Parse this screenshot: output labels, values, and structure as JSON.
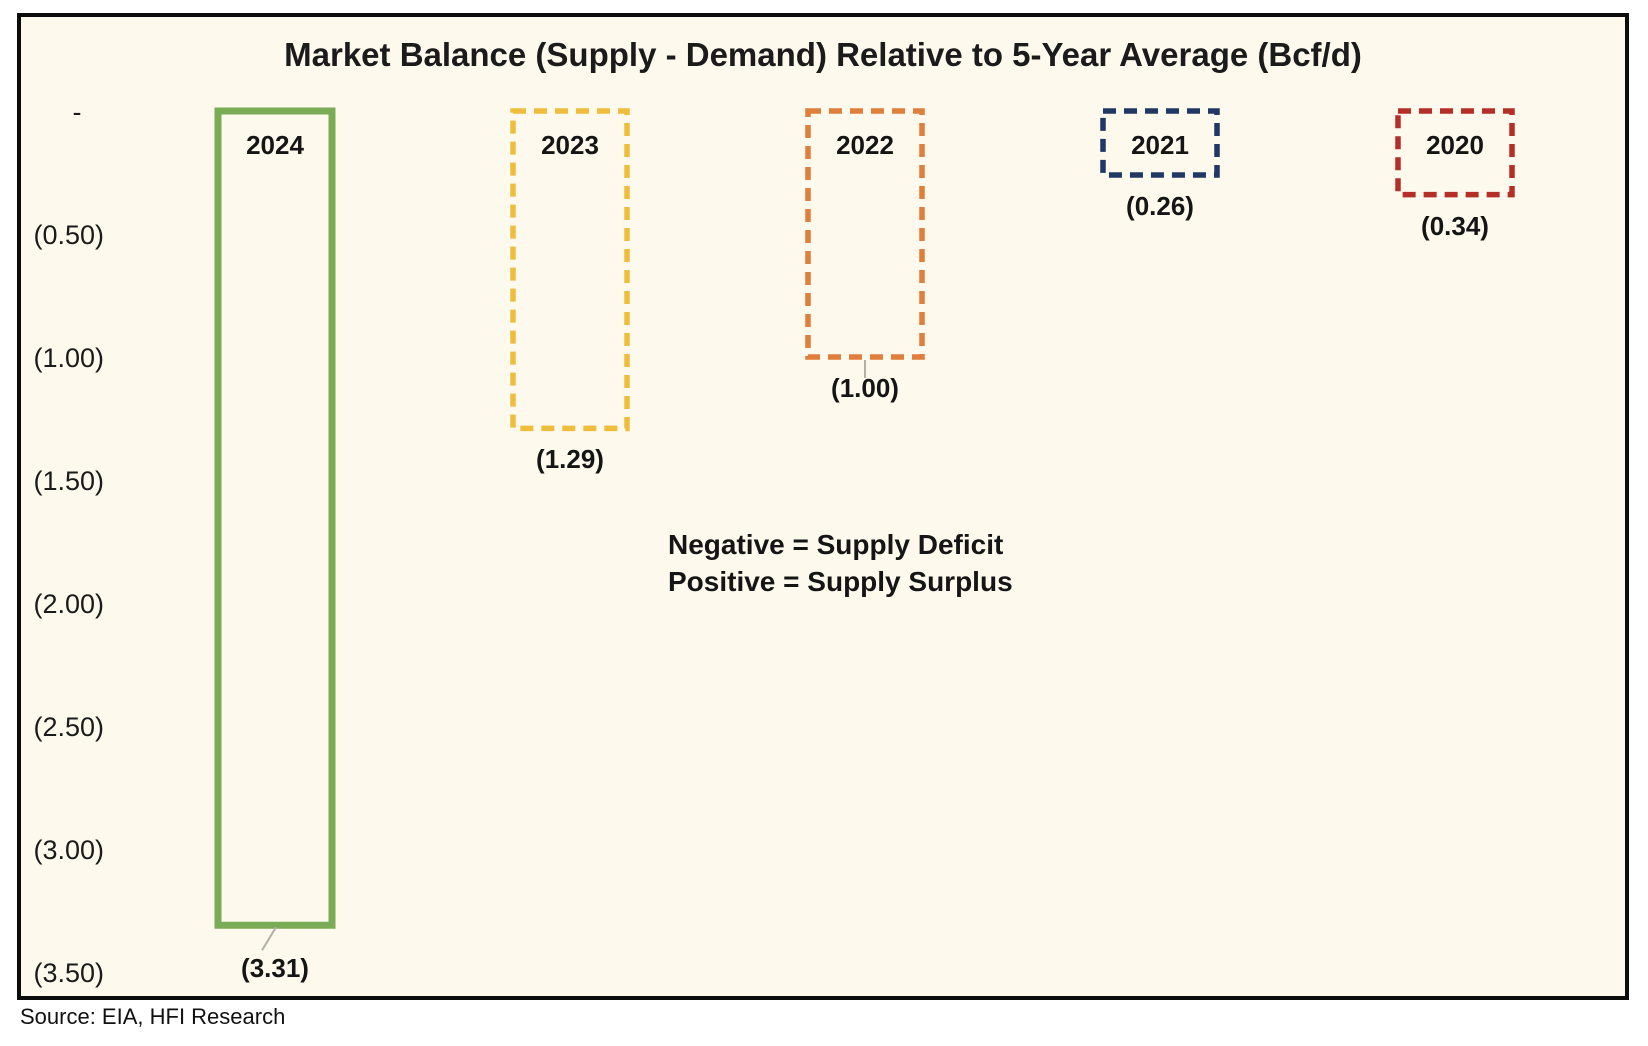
{
  "chart_data": {
    "type": "bar",
    "title": "Market Balance (Supply - Demand) Relative to 5-Year Average (Bcf/d)",
    "categories": [
      "2024",
      "2023",
      "2022",
      "2021",
      "2020"
    ],
    "values": [
      -3.31,
      -1.29,
      -1.0,
      -0.26,
      -0.34
    ],
    "value_labels": [
      "(3.31)",
      "(1.29)",
      "(1.00)",
      "(0.26)",
      "(0.34)"
    ],
    "series_colors": [
      "#7aac56",
      "#f0bc3c",
      "#e07e3c",
      "#1f3864",
      "#b52e28"
    ],
    "bar_border_styles": [
      "solid",
      "dashed",
      "dashed",
      "dashed",
      "dashed"
    ],
    "leader_lines": [
      true,
      false,
      true,
      false,
      false
    ],
    "y_axis": {
      "tick_labels": [
        "-",
        "(0.50)",
        "(1.00)",
        "(1.50)",
        "(2.00)",
        "(2.50)",
        "(3.00)",
        "(3.50)"
      ],
      "tick_values": [
        0,
        -0.5,
        -1.0,
        -1.5,
        -2.0,
        -2.5,
        -3.0,
        -3.5
      ],
      "ylim": [
        0,
        -3.5
      ]
    },
    "annotation": [
      "Negative = Supply Deficit",
      "Positive = Supply Surplus"
    ],
    "legend": "none",
    "grid": false,
    "plot_background": "#fdf9ed",
    "frame_border_color": "#0c0c0c",
    "leader_line_color": "#b3afa7"
  },
  "source_note": "Source: EIA, HFI Research"
}
